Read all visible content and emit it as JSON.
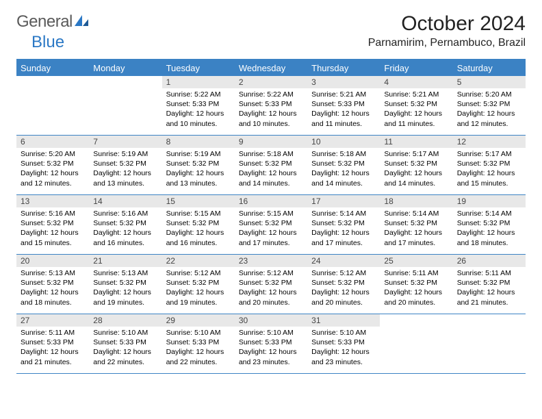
{
  "brand": {
    "text1": "General",
    "text2": "Blue"
  },
  "colors": {
    "accent": "#3b82c4",
    "daynum_bg": "#e8e8e8",
    "text": "#000000"
  },
  "title": "October 2024",
  "location": "Parnamirim, Pernambuco, Brazil",
  "weekdays": [
    "Sunday",
    "Monday",
    "Tuesday",
    "Wednesday",
    "Thursday",
    "Friday",
    "Saturday"
  ],
  "first_weekday_index": 2,
  "days": [
    {
      "n": 1,
      "sunrise": "5:22 AM",
      "sunset": "5:33 PM",
      "daylight": "12 hours and 10 minutes."
    },
    {
      "n": 2,
      "sunrise": "5:22 AM",
      "sunset": "5:33 PM",
      "daylight": "12 hours and 10 minutes."
    },
    {
      "n": 3,
      "sunrise": "5:21 AM",
      "sunset": "5:33 PM",
      "daylight": "12 hours and 11 minutes."
    },
    {
      "n": 4,
      "sunrise": "5:21 AM",
      "sunset": "5:32 PM",
      "daylight": "12 hours and 11 minutes."
    },
    {
      "n": 5,
      "sunrise": "5:20 AM",
      "sunset": "5:32 PM",
      "daylight": "12 hours and 12 minutes."
    },
    {
      "n": 6,
      "sunrise": "5:20 AM",
      "sunset": "5:32 PM",
      "daylight": "12 hours and 12 minutes."
    },
    {
      "n": 7,
      "sunrise": "5:19 AM",
      "sunset": "5:32 PM",
      "daylight": "12 hours and 13 minutes."
    },
    {
      "n": 8,
      "sunrise": "5:19 AM",
      "sunset": "5:32 PM",
      "daylight": "12 hours and 13 minutes."
    },
    {
      "n": 9,
      "sunrise": "5:18 AM",
      "sunset": "5:32 PM",
      "daylight": "12 hours and 14 minutes."
    },
    {
      "n": 10,
      "sunrise": "5:18 AM",
      "sunset": "5:32 PM",
      "daylight": "12 hours and 14 minutes."
    },
    {
      "n": 11,
      "sunrise": "5:17 AM",
      "sunset": "5:32 PM",
      "daylight": "12 hours and 14 minutes."
    },
    {
      "n": 12,
      "sunrise": "5:17 AM",
      "sunset": "5:32 PM",
      "daylight": "12 hours and 15 minutes."
    },
    {
      "n": 13,
      "sunrise": "5:16 AM",
      "sunset": "5:32 PM",
      "daylight": "12 hours and 15 minutes."
    },
    {
      "n": 14,
      "sunrise": "5:16 AM",
      "sunset": "5:32 PM",
      "daylight": "12 hours and 16 minutes."
    },
    {
      "n": 15,
      "sunrise": "5:15 AM",
      "sunset": "5:32 PM",
      "daylight": "12 hours and 16 minutes."
    },
    {
      "n": 16,
      "sunrise": "5:15 AM",
      "sunset": "5:32 PM",
      "daylight": "12 hours and 17 minutes."
    },
    {
      "n": 17,
      "sunrise": "5:14 AM",
      "sunset": "5:32 PM",
      "daylight": "12 hours and 17 minutes."
    },
    {
      "n": 18,
      "sunrise": "5:14 AM",
      "sunset": "5:32 PM",
      "daylight": "12 hours and 17 minutes."
    },
    {
      "n": 19,
      "sunrise": "5:14 AM",
      "sunset": "5:32 PM",
      "daylight": "12 hours and 18 minutes."
    },
    {
      "n": 20,
      "sunrise": "5:13 AM",
      "sunset": "5:32 PM",
      "daylight": "12 hours and 18 minutes."
    },
    {
      "n": 21,
      "sunrise": "5:13 AM",
      "sunset": "5:32 PM",
      "daylight": "12 hours and 19 minutes."
    },
    {
      "n": 22,
      "sunrise": "5:12 AM",
      "sunset": "5:32 PM",
      "daylight": "12 hours and 19 minutes."
    },
    {
      "n": 23,
      "sunrise": "5:12 AM",
      "sunset": "5:32 PM",
      "daylight": "12 hours and 20 minutes."
    },
    {
      "n": 24,
      "sunrise": "5:12 AM",
      "sunset": "5:32 PM",
      "daylight": "12 hours and 20 minutes."
    },
    {
      "n": 25,
      "sunrise": "5:11 AM",
      "sunset": "5:32 PM",
      "daylight": "12 hours and 20 minutes."
    },
    {
      "n": 26,
      "sunrise": "5:11 AM",
      "sunset": "5:32 PM",
      "daylight": "12 hours and 21 minutes."
    },
    {
      "n": 27,
      "sunrise": "5:11 AM",
      "sunset": "5:33 PM",
      "daylight": "12 hours and 21 minutes."
    },
    {
      "n": 28,
      "sunrise": "5:10 AM",
      "sunset": "5:33 PM",
      "daylight": "12 hours and 22 minutes."
    },
    {
      "n": 29,
      "sunrise": "5:10 AM",
      "sunset": "5:33 PM",
      "daylight": "12 hours and 22 minutes."
    },
    {
      "n": 30,
      "sunrise": "5:10 AM",
      "sunset": "5:33 PM",
      "daylight": "12 hours and 23 minutes."
    },
    {
      "n": 31,
      "sunrise": "5:10 AM",
      "sunset": "5:33 PM",
      "daylight": "12 hours and 23 minutes."
    }
  ],
  "labels": {
    "sunrise": "Sunrise:",
    "sunset": "Sunset:",
    "daylight": "Daylight:"
  }
}
